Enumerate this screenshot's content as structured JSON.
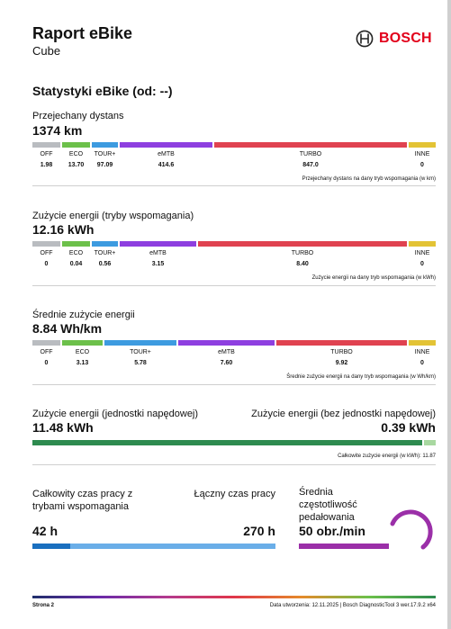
{
  "header": {
    "title": "Raport eBike",
    "subtitle": "Cube",
    "brand": "BOSCH"
  },
  "stats_title": "Statystyki eBike (od: --)",
  "distance": {
    "label": "Przejechany dystans",
    "total": "1374 km",
    "segments": [
      {
        "name": "OFF",
        "value": "1.98",
        "color": "#b9bcc0"
      },
      {
        "name": "ECO",
        "value": "13.70",
        "color": "#6cc04a"
      },
      {
        "name": "TOUR+",
        "value": "97.09",
        "color": "#3d9be0"
      },
      {
        "name": "eMTB",
        "value": "414.6",
        "color": "#8e3fe0"
      },
      {
        "name": "TURBO",
        "value": "847.0",
        "color": "#e04250"
      },
      {
        "name": "INNE",
        "value": "0",
        "color": "#e3c335"
      }
    ],
    "caption": "Przejechany dystans na dany tryb wspomagania (w km)"
  },
  "energy_modes": {
    "label": "Zużycie energii (tryby wspomagania)",
    "total": "12.16 kWh",
    "segments": [
      {
        "name": "OFF",
        "value": "0",
        "color": "#b9bcc0"
      },
      {
        "name": "ECO",
        "value": "0.04",
        "color": "#6cc04a"
      },
      {
        "name": "TOUR+",
        "value": "0.56",
        "color": "#3d9be0"
      },
      {
        "name": "eMTB",
        "value": "3.15",
        "color": "#8e3fe0"
      },
      {
        "name": "TURBO",
        "value": "8.40",
        "color": "#e04250"
      },
      {
        "name": "INNE",
        "value": "0",
        "color": "#e3c335"
      }
    ],
    "caption": "Zużycie energii na dany tryb wspomagania (w kWh)"
  },
  "avg_energy": {
    "label": "Średnie zużycie energii",
    "total": "8.84 Wh/km",
    "segments": [
      {
        "name": "OFF",
        "value": "0",
        "color": "#b9bcc0"
      },
      {
        "name": "ECO",
        "value": "3.13",
        "color": "#6cc04a"
      },
      {
        "name": "TOUR+",
        "value": "5.78",
        "color": "#3d9be0"
      },
      {
        "name": "eMTB",
        "value": "7.60",
        "color": "#8e3fe0"
      },
      {
        "name": "TURBO",
        "value": "9.92",
        "color": "#e04250"
      },
      {
        "name": "INNE",
        "value": "0",
        "color": "#e3c335"
      }
    ],
    "caption": "Średnie zużycie energii na dany tryb wspomagania (w Wh/km)"
  },
  "energy_drive": {
    "label_left": "Zużycie energii (jednostki napędowej)",
    "value_left": "11.48 kWh",
    "label_right": "Zużycie energii (bez jednostki napędowej)",
    "value_right": "0.39 kWh",
    "caption": "Całkowite zużycie energii (w kWh): 11.87",
    "green_fraction": 0.967,
    "colors": {
      "drive": "#2e8b4f",
      "other": "#a8d8a0"
    }
  },
  "time": {
    "assist_label_1": "Całkowity czas pracy z",
    "assist_label_2": "trybami wspomagania",
    "assist_value": "42 h",
    "total_label": "Łączny czas pracy",
    "total_value": "270 h",
    "assist_fraction": 0.156,
    "colors": {
      "assist": "#1a6fbf",
      "total": "#6aaee8"
    }
  },
  "cadence": {
    "label_1": "Średnia",
    "label_2": "częstotliwość",
    "label_3": "pedałowania",
    "value": "50 obr./min",
    "color": "#9b2fa8"
  },
  "footer": {
    "page": "Strona 2",
    "info": "Data utworzenia: 12.11.2025 | Bosch DiagnosticTool 3 wer.17.9.2 x64"
  }
}
